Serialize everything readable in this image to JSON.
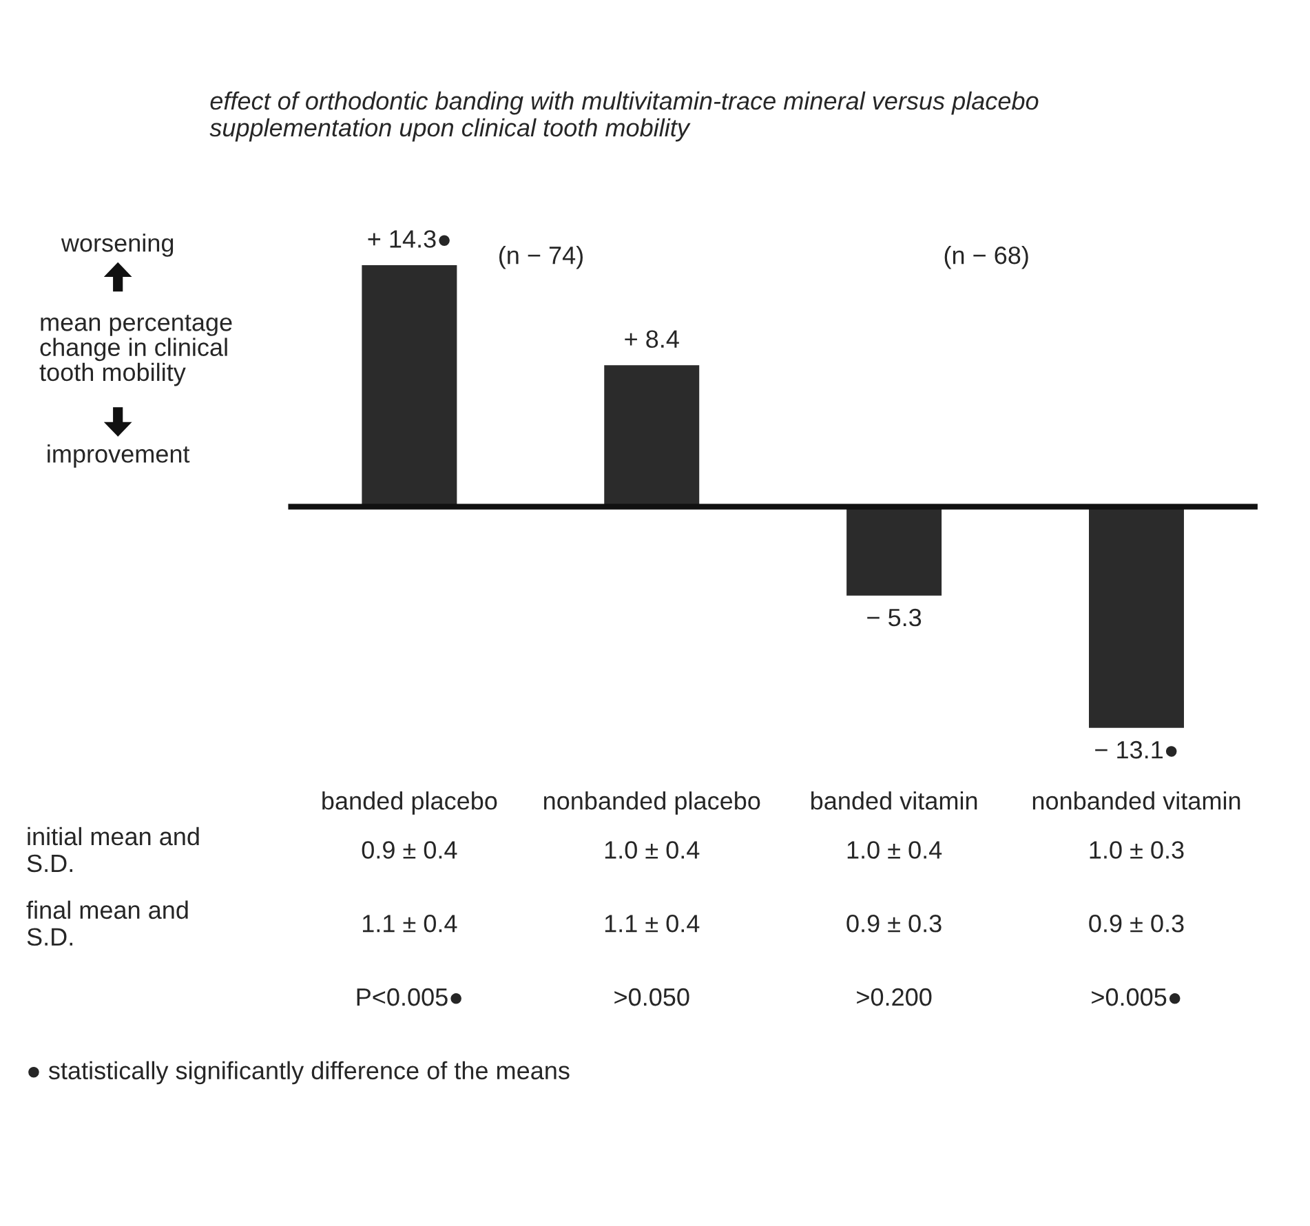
{
  "chart_data": {
    "type": "bar",
    "title": "effect of orthodontic banding with multivitamin-trace mineral versus placebo\nsupplementation upon clinical tooth mobility",
    "ylabel": "mean percentage\nchange in clinical\ntooth mobility",
    "categories": [
      "banded placebo",
      "nonbanded placebo",
      "banded vitamin",
      "nonbanded vitamin"
    ],
    "values": [
      14.3,
      8.4,
      -5.3,
      -13.1
    ],
    "value_labels": [
      "+ 14.3●",
      "+ 8.4",
      "− 5.3",
      "− 13.1●"
    ],
    "color": "#2b2b2b",
    "legend": false,
    "annotations": [
      "worsening",
      "improvement",
      "(n − 74)",
      "(n − 68)",
      "initial mean and\nS.D.",
      "0.9 ± 0.4",
      "1.0 ± 0.4",
      "1.0 ± 0.4",
      "1.0 ± 0.3",
      "final mean and\nS.D.",
      "1.1 ± 0.4",
      "1.1 ± 0.4",
      "0.9 ± 0.3",
      "0.9 ± 0.3",
      "P<0.005●",
      ">0.050",
      ">0.200",
      ">0.005●",
      "● statistically significantly difference of the means"
    ]
  }
}
